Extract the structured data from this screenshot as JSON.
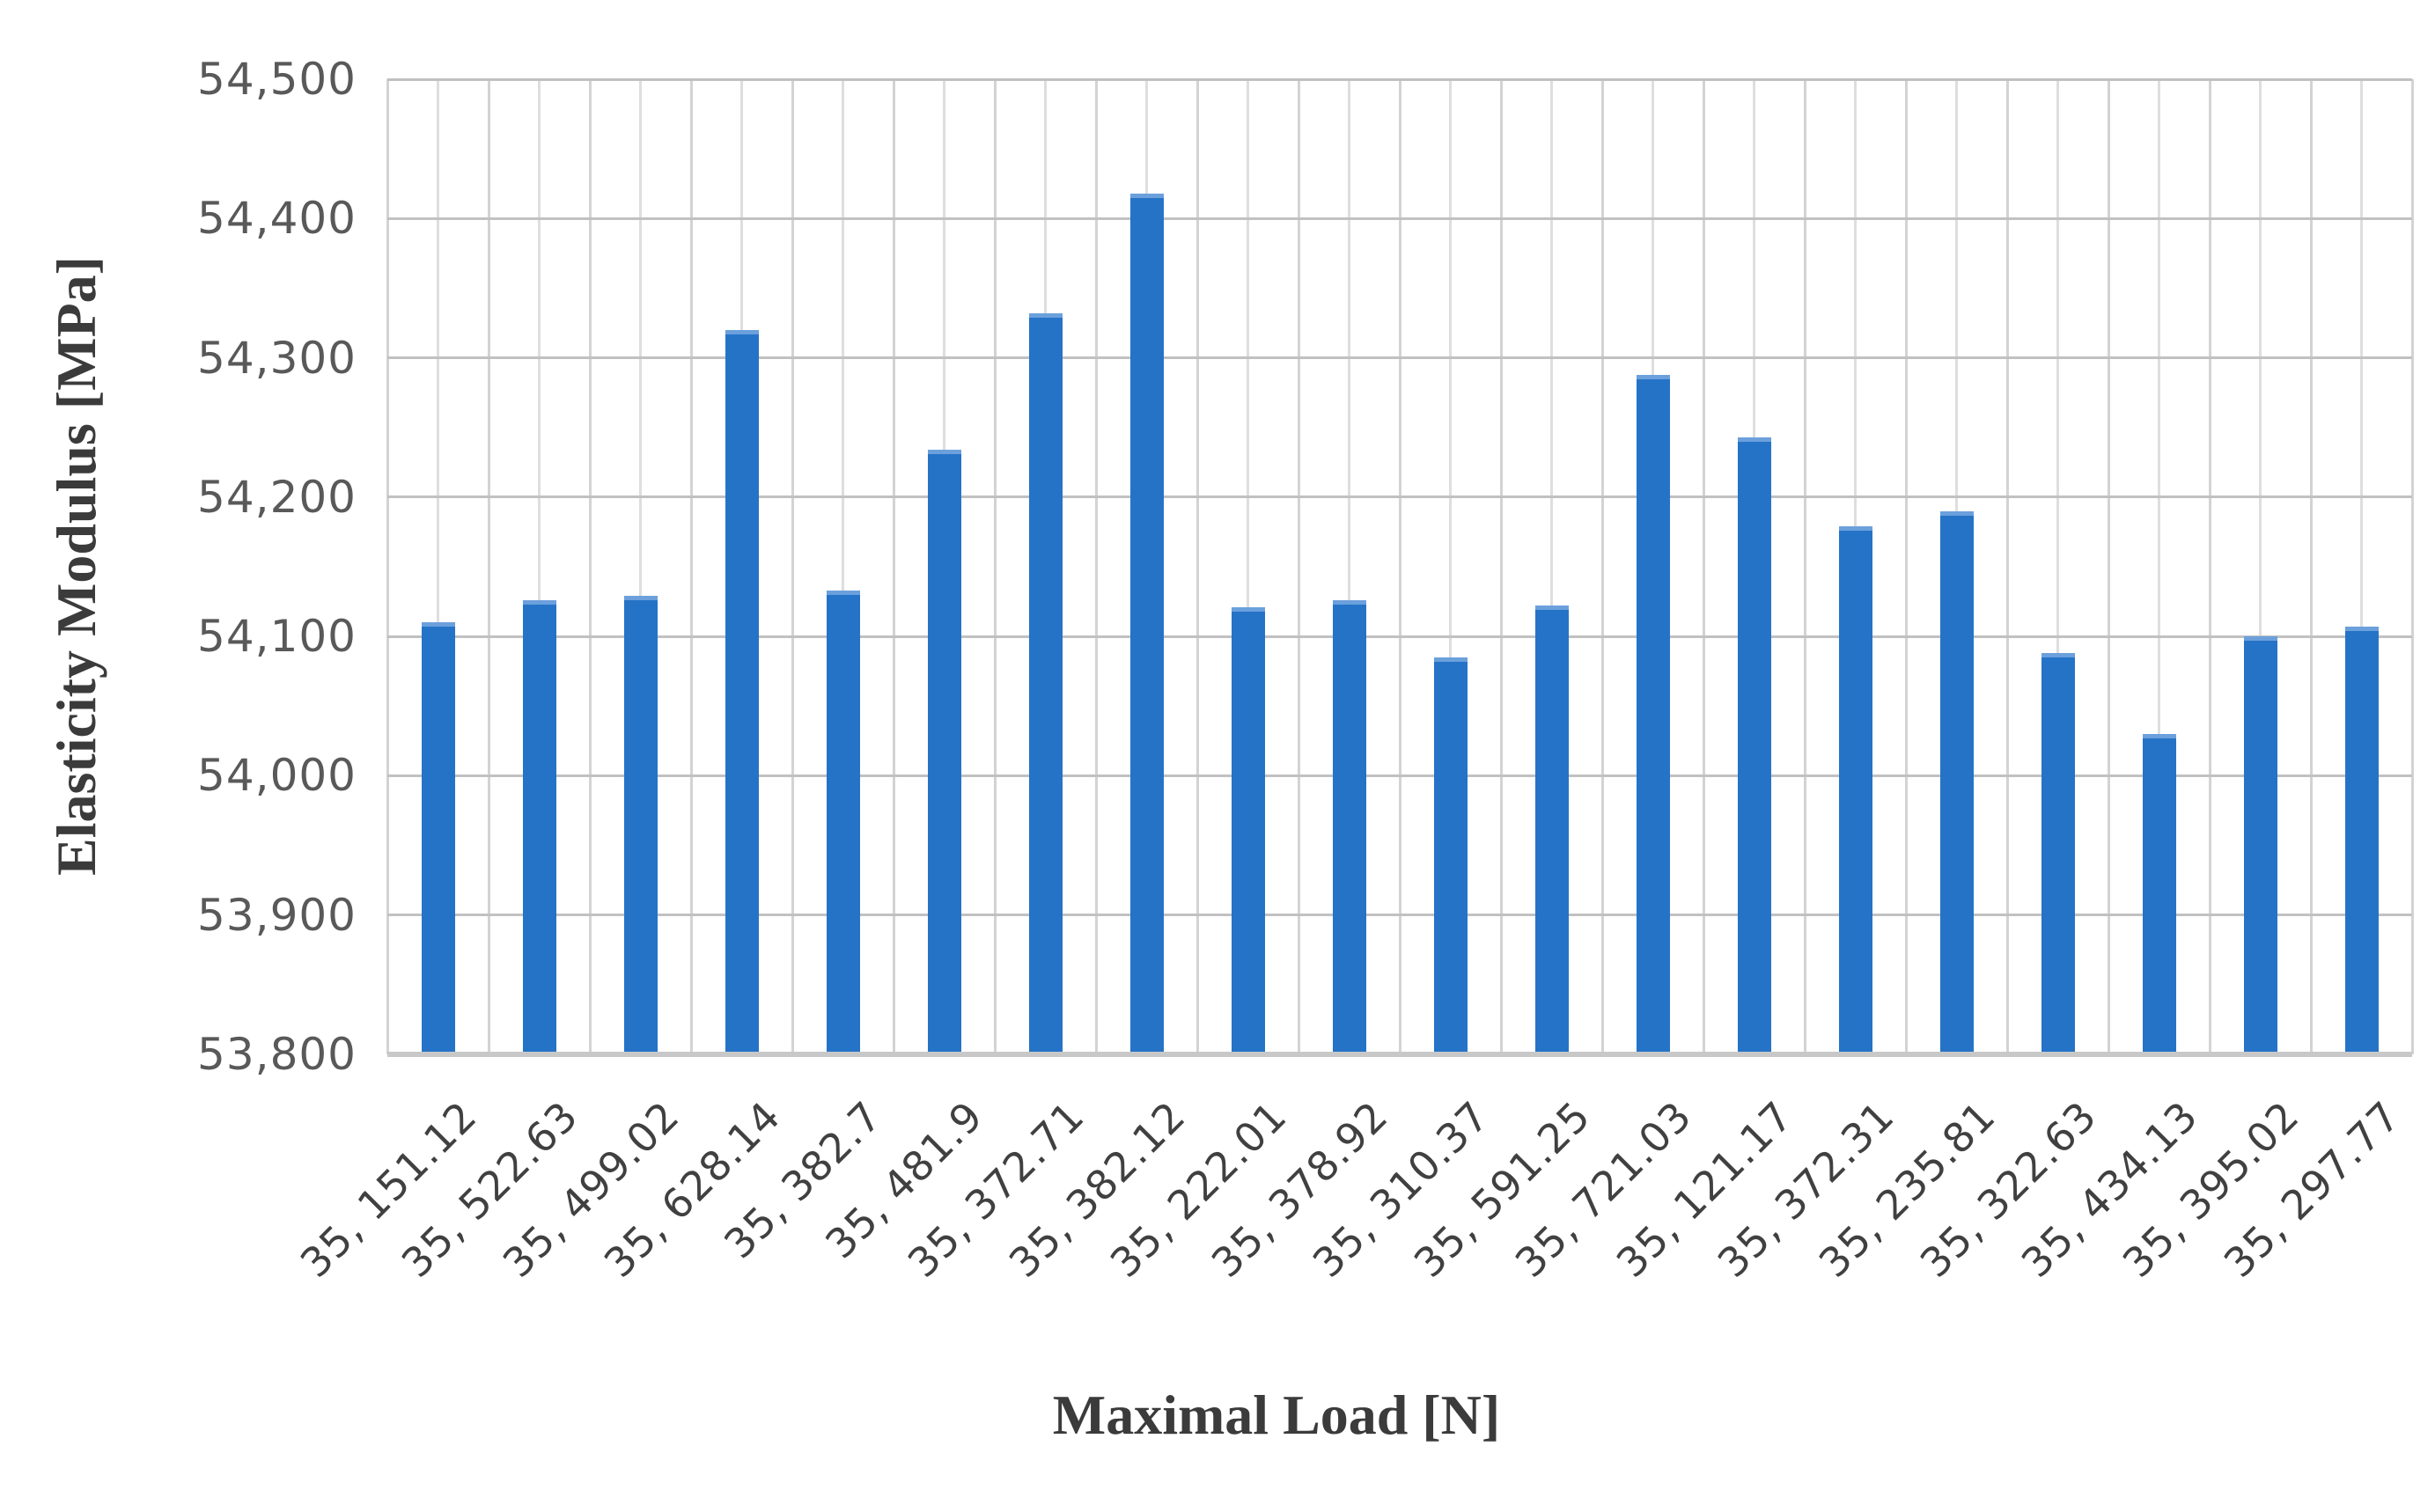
{
  "chart_data": {
    "type": "bar",
    "title": "",
    "xlabel": "Maximal Load [N]",
    "ylabel": "Elasticity Modulus [MPa]",
    "categories": [
      "35, 151.12",
      "35, 522.63",
      "35, 499.02",
      "35, 628.14",
      "35, 382.7",
      "35, 481.9",
      "35, 372.71",
      "35, 382.12",
      "35, 222.01",
      "35, 378.92",
      "35, 310.37",
      "35, 591.25",
      "35, 721.03",
      "35, 121.17",
      "35, 372.31",
      "35, 235.81",
      "35, 322.63",
      "35, 434.13",
      "35, 395.02",
      "35, 297.77"
    ],
    "values": [
      54110,
      54126,
      54129,
      54320,
      54133,
      54234,
      54332,
      54418,
      54121,
      54126,
      54085,
      54122,
      54288,
      54243,
      54179,
      54190,
      54088,
      54030,
      54100,
      54107
    ],
    "ylim": [
      53800,
      54500
    ],
    "ytick_interval": 100,
    "ytick_labels": [
      "53,800",
      "53,900",
      "54,000",
      "54,100",
      "54,200",
      "54,300",
      "54,400",
      "54,500"
    ],
    "grid": true,
    "legend": false,
    "colors": {
      "bar": "#2573C7",
      "bar_top_edge": "#6BA0DC",
      "h_gridline": "#c1c1c1",
      "v_gridline_major": "#d3d3d3",
      "v_gridline_minor": "#dedede",
      "axis_line": "#c8c8c8",
      "tick_label": "#595959",
      "axis_title": "#3b3b3b"
    }
  }
}
